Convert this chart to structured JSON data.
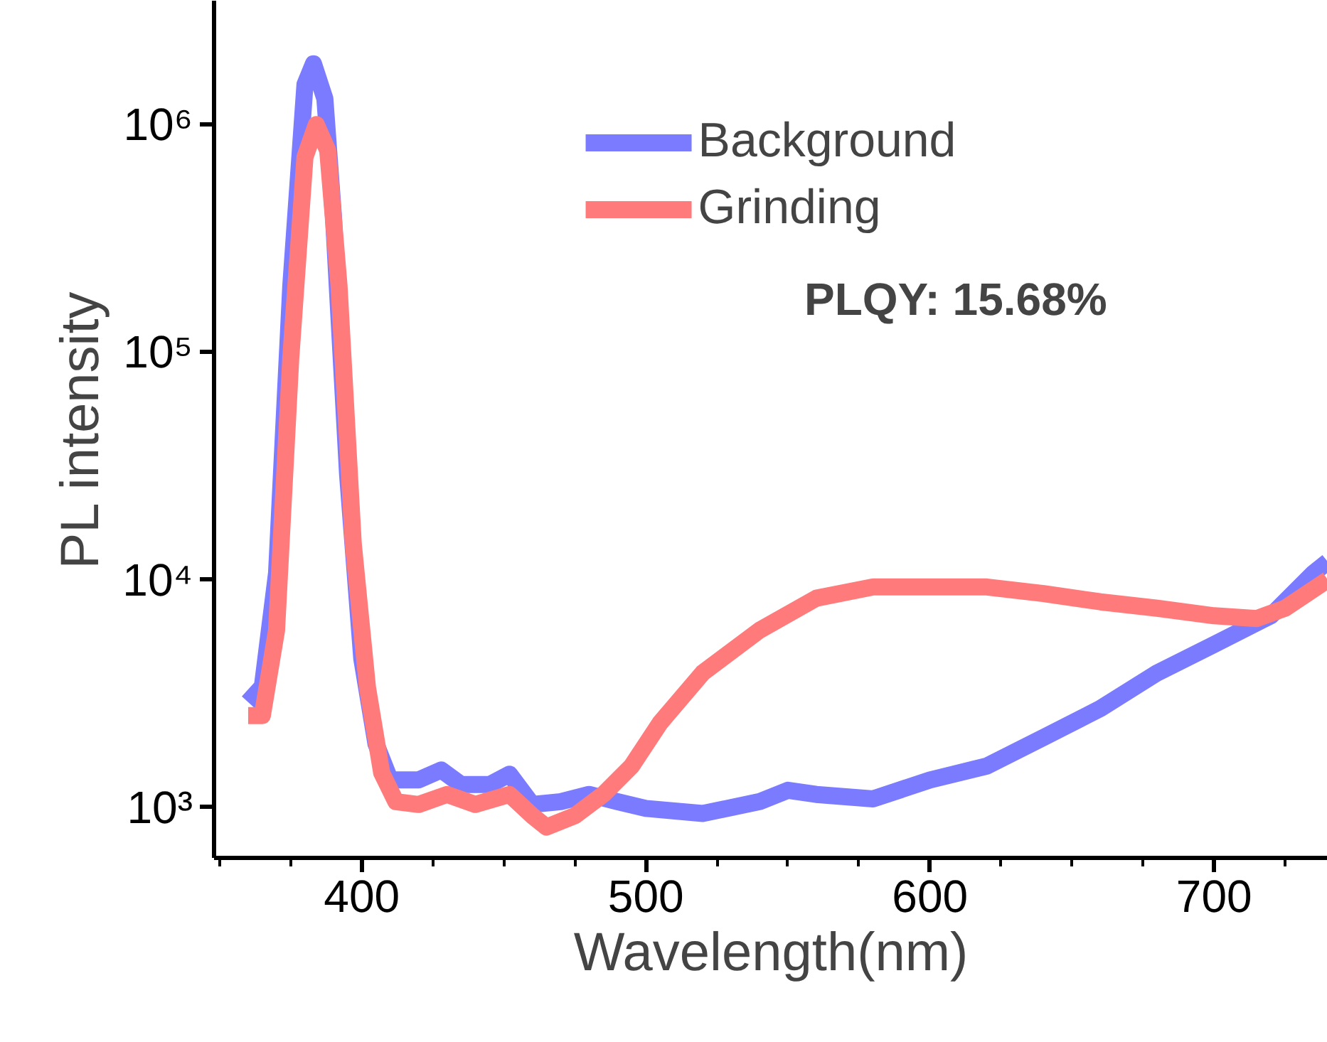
{
  "chart_data": {
    "type": "line",
    "xlabel": "Wavelength(nm)",
    "ylabel": "PL intensity",
    "log": "y",
    "grid": false,
    "legend": "top",
    "line_style": "solid",
    "marker": "none",
    "xlim": [
      348,
      740
    ],
    "ylim": [
      600,
      3500000
    ],
    "xticks": [
      {
        "value": 350,
        "label": null
      },
      {
        "value": 375,
        "label": null
      },
      400,
      {
        "value": 425,
        "label": null
      },
      {
        "value": 450,
        "label": null
      },
      {
        "value": 475,
        "label": null
      },
      500,
      {
        "value": 525,
        "label": null
      },
      {
        "value": 550,
        "label": null
      },
      {
        "value": 575,
        "label": null
      },
      600,
      {
        "value": 625,
        "label": null
      },
      {
        "value": 650,
        "label": null
      },
      {
        "value": 675,
        "label": null
      },
      700,
      {
        "value": 725,
        "label": null
      }
    ],
    "yticks": [
      {
        "value": 1000,
        "label": "10³"
      },
      {
        "value": 10000,
        "label": "10⁴"
      },
      {
        "value": 100000,
        "label": "10⁵"
      },
      {
        "value": 1000000,
        "label": "10⁶"
      }
    ],
    "annotations": [
      "PLQY: 15.68%"
    ],
    "series": [
      {
        "name": "Background",
        "color": "#7b7bff",
        "x": [
          360,
          365,
          370,
          375,
          380,
          383,
          387,
          390,
          395,
          400,
          405,
          410,
          420,
          428,
          435,
          445,
          452,
          460,
          470,
          480,
          490,
          500,
          520,
          540,
          550,
          560,
          580,
          600,
          620,
          640,
          660,
          680,
          700,
          720,
          735,
          740
        ],
        "values": [
          2900,
          3400,
          10700,
          195000,
          1500000,
          1850000,
          1300000,
          400000,
          29000,
          4500,
          1900,
          1320,
          1320,
          1460,
          1260,
          1260,
          1400,
          1030,
          1060,
          1140,
          1060,
          990,
          940,
          1060,
          1190,
          1140,
          1090,
          1320,
          1520,
          2030,
          2720,
          3900,
          5200,
          6950,
          10700,
          12000
        ]
      },
      {
        "name": "Grinding",
        "color": "#ff7b7b",
        "x": [
          360,
          365,
          370,
          375,
          380,
          384,
          388,
          392,
          397,
          402,
          407,
          412,
          420,
          430,
          440,
          452,
          460,
          465,
          475,
          485,
          495,
          505,
          520,
          540,
          560,
          580,
          600,
          620,
          640,
          660,
          680,
          700,
          715,
          725,
          740
        ],
        "values": [
          2530,
          2530,
          6000,
          94000,
          720000,
          1000000,
          770000,
          195000,
          14400,
          3370,
          1420,
          1060,
          1030,
          1140,
          1030,
          1140,
          920,
          820,
          920,
          1140,
          1520,
          2350,
          3900,
          6000,
          8300,
          9300,
          9300,
          9300,
          8700,
          8000,
          7500,
          6950,
          6760,
          7500,
          10000
        ]
      }
    ]
  }
}
